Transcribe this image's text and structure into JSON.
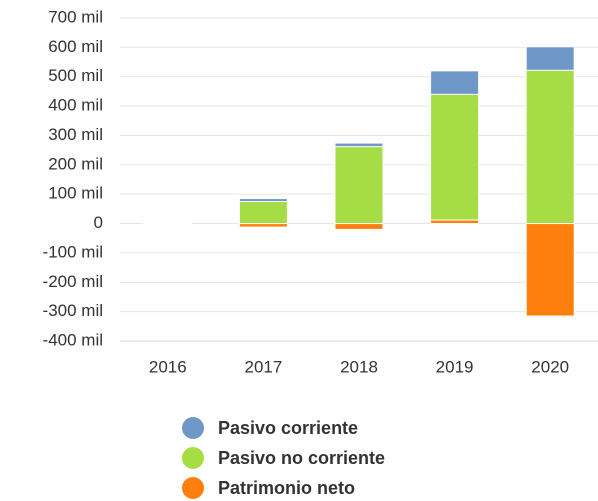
{
  "chart_data": {
    "type": "stacked-bar",
    "categories": [
      "2016",
      "2017",
      "2018",
      "2019",
      "2020"
    ],
    "series": [
      {
        "name": "Patrimonio neto",
        "color": "#ff7f0e",
        "values": [
          1000,
          -12000,
          -20000,
          12000,
          -315000
        ]
      },
      {
        "name": "Pasivo no corriente",
        "color": "#a6dd44",
        "values": [
          2000,
          75000,
          262000,
          428000,
          522000
        ]
      },
      {
        "name": "Pasivo corriente",
        "color": "#6f97c8",
        "values": [
          0,
          10000,
          12000,
          80000,
          80000
        ]
      }
    ],
    "legend_order": [
      "Pasivo corriente",
      "Pasivo no corriente",
      "Patrimonio neto"
    ],
    "ylim": [
      -400000,
      700000
    ],
    "yticks": [
      {
        "value": -400000,
        "label": "-400 mil"
      },
      {
        "value": -300000,
        "label": "-300 mil"
      },
      {
        "value": -200000,
        "label": "-200 mil"
      },
      {
        "value": -100000,
        "label": "-100 mil"
      },
      0,
      {
        "value": 100000,
        "label": "100 mil"
      },
      {
        "value": 200000,
        "label": "200 mil"
      },
      {
        "value": 300000,
        "label": "300 mil"
      },
      {
        "value": 400000,
        "label": "400 mil"
      },
      {
        "value": 500000,
        "label": "500 mil"
      },
      {
        "value": 600000,
        "label": "600 mil"
      },
      {
        "value": 700000,
        "label": "700 mil"
      }
    ],
    "grid": true,
    "legend": "bottom"
  }
}
